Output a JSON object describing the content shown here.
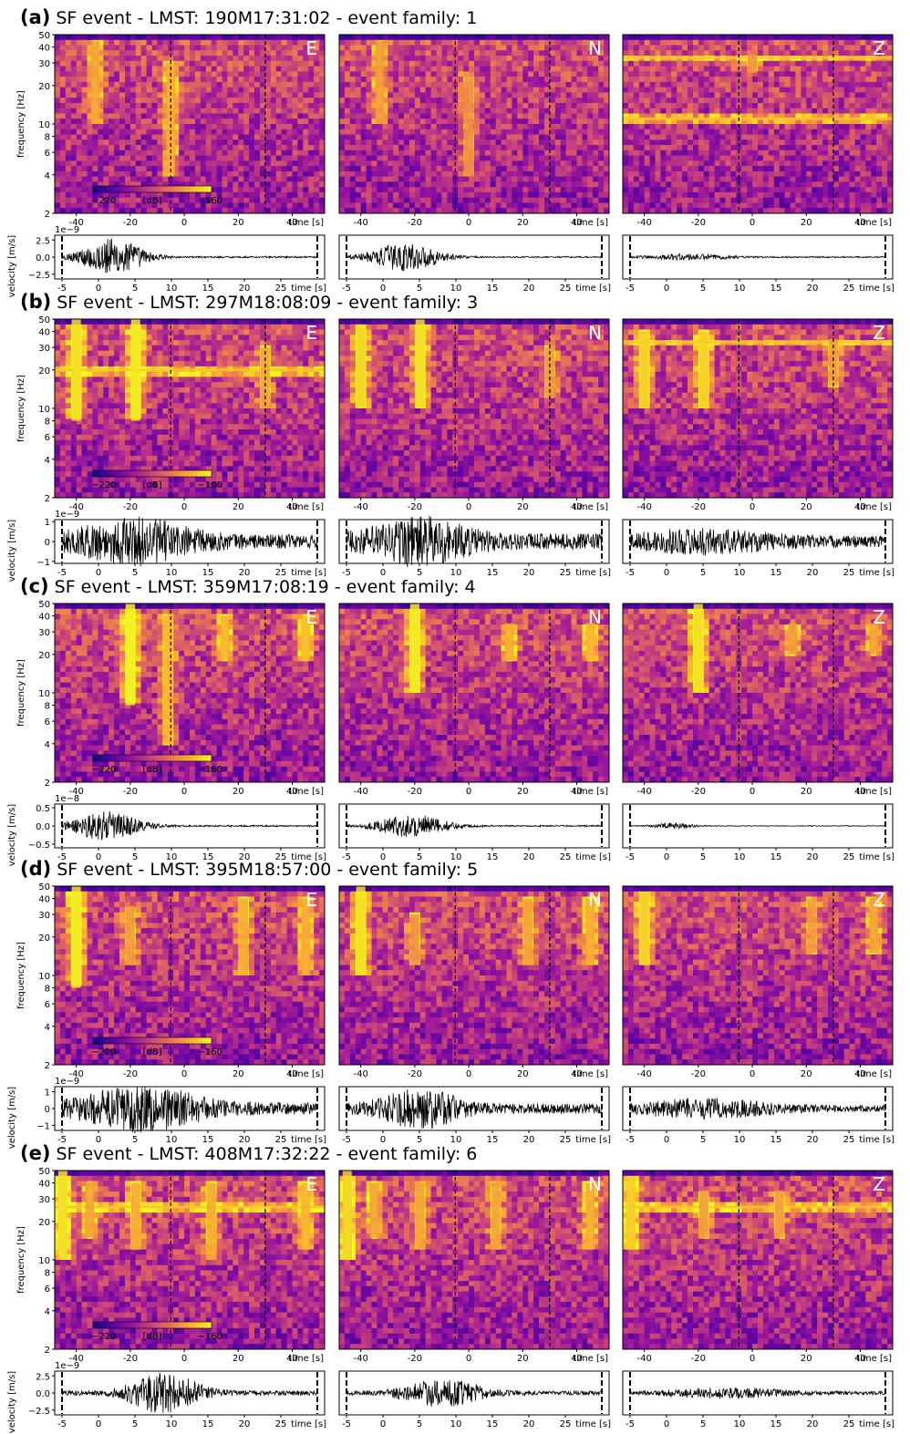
{
  "figure": {
    "components": [
      "E",
      "N",
      "Z"
    ],
    "colorbar": {
      "min_label": "−220",
      "unit_label": "[dB]",
      "max_label": "−160",
      "vmin": -220,
      "vmax": -160,
      "colormap": "plasma",
      "colors": [
        "#0d0887",
        "#5b02a3",
        "#9a179b",
        "#cb4678",
        "#eb7852",
        "#fbb32f",
        "#f0f921"
      ]
    },
    "events": [
      {
        "label": "(a)",
        "title": "SF event - LMST: 190M17:31:02 - event family: 1",
        "velocity_exponent": "1e−9"
      },
      {
        "label": "(b)",
        "title": "SF event - LMST: 297M18:08:09 - event family: 3",
        "velocity_exponent": "1e−9"
      },
      {
        "label": "(c)",
        "title": "SF event - LMST: 359M17:08:19 - event family: 4",
        "velocity_exponent": "1e−8"
      },
      {
        "label": "(d)",
        "title": "SF event - LMST: 395M18:57:00 - event family: 5",
        "velocity_exponent": "1e−9"
      },
      {
        "label": "(e)",
        "title": "SF event - LMST: 408M17:32:22 - event family: 6",
        "velocity_exponent": "1e−9"
      }
    ]
  },
  "chart_data": [
    {
      "type": "heatmap",
      "description_kind": "spectrogram",
      "xlabel": "time [s]",
      "ylabel": "frequency [Hz]",
      "x_ticks": [
        -40,
        -20,
        0,
        20,
        40
      ],
      "y_ticks": [
        2,
        4,
        6,
        8,
        10,
        20,
        30,
        40,
        50
      ],
      "ylim": [
        2,
        50
      ],
      "y_scale": "log",
      "marker_lines_x": [
        -5,
        30
      ],
      "events": [
        {
          "event": "(a)",
          "E": {
            "features": [
              {
                "t": -33,
                "f_low": 10,
                "f_high": 45,
                "strength": 0.5
              },
              {
                "t": -5,
                "f_low": 4,
                "f_high": 30,
                "strength": 0.55
              }
            ]
          },
          "N": {
            "features": [
              {
                "t": -33,
                "f_low": 10,
                "f_high": 45,
                "strength": 0.45
              },
              {
                "t": 0,
                "f_low": 4,
                "f_high": 25,
                "strength": 0.4
              }
            ]
          },
          "Z": {
            "features": [
              {
                "t": 0,
                "f_low": 25,
                "f_high": 35,
                "strength": 0.4
              }
            ],
            "tonal_lines_hz": [
              11,
              33
            ]
          }
        },
        {
          "event": "(b)",
          "E": {
            "features": [
              {
                "t": -40,
                "f_low": 8,
                "f_high": 50,
                "strength": 0.85
              },
              {
                "t": -18,
                "f_low": 8,
                "f_high": 50,
                "strength": 0.9
              },
              {
                "t": 30,
                "f_low": 10,
                "f_high": 30,
                "strength": 0.5
              }
            ],
            "tonal_lines_hz": [
              20
            ]
          },
          "N": {
            "features": [
              {
                "t": -40,
                "f_low": 10,
                "f_high": 45,
                "strength": 0.8
              },
              {
                "t": -18,
                "f_low": 10,
                "f_high": 50,
                "strength": 0.85
              },
              {
                "t": 30,
                "f_low": 12,
                "f_high": 30,
                "strength": 0.45
              }
            ]
          },
          "Z": {
            "features": [
              {
                "t": -40,
                "f_low": 10,
                "f_high": 40,
                "strength": 0.75
              },
              {
                "t": -18,
                "f_low": 10,
                "f_high": 40,
                "strength": 0.75
              },
              {
                "t": 30,
                "f_low": 15,
                "f_high": 35,
                "strength": 0.45
              }
            ],
            "tonal_lines_hz": [
              33
            ]
          }
        },
        {
          "event": "(c)",
          "E": {
            "features": [
              {
                "t": -20,
                "f_low": 8,
                "f_high": 50,
                "strength": 0.95
              },
              {
                "t": -6,
                "f_low": 4,
                "f_high": 40,
                "strength": 0.6
              },
              {
                "t": 15,
                "f_low": 18,
                "f_high": 40,
                "strength": 0.6
              },
              {
                "t": 45,
                "f_low": 18,
                "f_high": 40,
                "strength": 0.65
              }
            ]
          },
          "N": {
            "features": [
              {
                "t": -20,
                "f_low": 10,
                "f_high": 50,
                "strength": 0.9
              },
              {
                "t": 15,
                "f_low": 18,
                "f_high": 35,
                "strength": 0.55
              },
              {
                "t": 45,
                "f_low": 18,
                "f_high": 35,
                "strength": 0.6
              }
            ]
          },
          "Z": {
            "features": [
              {
                "t": -20,
                "f_low": 10,
                "f_high": 50,
                "strength": 0.85
              },
              {
                "t": 15,
                "f_low": 20,
                "f_high": 35,
                "strength": 0.45
              },
              {
                "t": 45,
                "f_low": 20,
                "f_high": 35,
                "strength": 0.5
              }
            ]
          }
        },
        {
          "event": "(d)",
          "E": {
            "features": [
              {
                "t": -40,
                "f_low": 8,
                "f_high": 50,
                "strength": 0.9
              },
              {
                "t": -20,
                "f_low": 12,
                "f_high": 35,
                "strength": 0.45
              },
              {
                "t": 22,
                "f_low": 10,
                "f_high": 40,
                "strength": 0.55
              },
              {
                "t": 45,
                "f_low": 10,
                "f_high": 40,
                "strength": 0.55
              }
            ]
          },
          "N": {
            "features": [
              {
                "t": -40,
                "f_low": 10,
                "f_high": 50,
                "strength": 0.85
              },
              {
                "t": -20,
                "f_low": 12,
                "f_high": 30,
                "strength": 0.4
              },
              {
                "t": 22,
                "f_low": 12,
                "f_high": 40,
                "strength": 0.5
              },
              {
                "t": 45,
                "f_low": 12,
                "f_high": 40,
                "strength": 0.55
              }
            ]
          },
          "Z": {
            "features": [
              {
                "t": -40,
                "f_low": 12,
                "f_high": 45,
                "strength": 0.75
              },
              {
                "t": 22,
                "f_low": 15,
                "f_high": 40,
                "strength": 0.45
              },
              {
                "t": 45,
                "f_low": 15,
                "f_high": 40,
                "strength": 0.5
              }
            ]
          }
        },
        {
          "event": "(e)",
          "E": {
            "features": [
              {
                "t": -45,
                "f_low": 10,
                "f_high": 50,
                "strength": 0.85
              },
              {
                "t": -35,
                "f_low": 15,
                "f_high": 40,
                "strength": 0.5
              },
              {
                "t": -18,
                "f_low": 12,
                "f_high": 40,
                "strength": 0.55
              },
              {
                "t": 10,
                "f_low": 10,
                "f_high": 40,
                "strength": 0.55
              },
              {
                "t": 45,
                "f_low": 12,
                "f_high": 40,
                "strength": 0.6
              }
            ],
            "tonal_lines_hz": [
              26
            ]
          },
          "N": {
            "features": [
              {
                "t": -45,
                "f_low": 10,
                "f_high": 50,
                "strength": 0.8
              },
              {
                "t": -35,
                "f_low": 15,
                "f_high": 40,
                "strength": 0.5
              },
              {
                "t": -18,
                "f_low": 12,
                "f_high": 40,
                "strength": 0.5
              },
              {
                "t": 10,
                "f_low": 12,
                "f_high": 40,
                "strength": 0.5
              },
              {
                "t": 45,
                "f_low": 12,
                "f_high": 40,
                "strength": 0.55
              }
            ]
          },
          "Z": {
            "features": [
              {
                "t": -45,
                "f_low": 12,
                "f_high": 45,
                "strength": 0.75
              },
              {
                "t": -18,
                "f_low": 15,
                "f_high": 35,
                "strength": 0.45
              },
              {
                "t": 10,
                "f_low": 15,
                "f_high": 35,
                "strength": 0.45
              }
            ],
            "tonal_lines_hz": [
              26
            ]
          }
        }
      ]
    },
    {
      "type": "line",
      "description_kind": "velocity seismogram",
      "xlabel": "time [s]",
      "ylabel": "velocity [m/s]",
      "x_ticks": [
        -5,
        0,
        5,
        10,
        15,
        20,
        25
      ],
      "xlim": [
        -6,
        31
      ],
      "marker_lines_x": [
        -5,
        30
      ],
      "events": [
        {
          "event": "(a)",
          "y_ticks": [
            -2.5,
            0.0,
            2.5
          ],
          "y_tick_labels": [
            "−2.5",
            "0.0",
            "2.5"
          ],
          "ylim": [
            -3.2,
            3.2
          ],
          "amplitude_envelope": {
            "E": {
              "peak_t": 2,
              "peak_amp": 2.8,
              "width": 6,
              "floor": 0.12
            },
            "N": {
              "peak_t": 3,
              "peak_amp": 2.0,
              "width": 7,
              "floor": 0.1
            },
            "Z": {
              "peak_t": 3,
              "peak_amp": 0.4,
              "width": 8,
              "floor": 0.1
            }
          }
        },
        {
          "event": "(b)",
          "y_ticks": [
            -1,
            0,
            1
          ],
          "y_tick_labels": [
            "−1",
            "0",
            "1"
          ],
          "ylim": [
            -1.1,
            1.1
          ],
          "amplitude_envelope": {
            "E": {
              "peak_t": 5,
              "peak_amp": 0.9,
              "width": 12,
              "floor": 0.35
            },
            "N": {
              "peak_t": 5,
              "peak_amp": 0.95,
              "width": 10,
              "floor": 0.4
            },
            "Z": {
              "peak_t": 5,
              "peak_amp": 0.4,
              "width": 14,
              "floor": 0.3
            }
          }
        },
        {
          "event": "(c)",
          "y_ticks": [
            -0.5,
            0.0,
            0.5
          ],
          "y_tick_labels": [
            "−0.5",
            "0.0",
            "0.5"
          ],
          "ylim": [
            -0.6,
            0.6
          ],
          "amplitude_envelope": {
            "E": {
              "peak_t": 1,
              "peak_amp": 0.38,
              "width": 7,
              "floor": 0.02
            },
            "N": {
              "peak_t": 4,
              "peak_amp": 0.3,
              "width": 7,
              "floor": 0.02
            },
            "Z": {
              "peak_t": 1,
              "peak_amp": 0.08,
              "width": 4,
              "floor": 0.01
            }
          }
        },
        {
          "event": "(d)",
          "y_ticks": [
            -1,
            0,
            1
          ],
          "y_tick_labels": [
            "−1",
            "0",
            "1"
          ],
          "ylim": [
            -1.3,
            1.3
          ],
          "amplitude_envelope": {
            "E": {
              "peak_t": 6,
              "peak_amp": 1.1,
              "width": 12,
              "floor": 0.35
            },
            "N": {
              "peak_t": 5,
              "peak_amp": 0.95,
              "width": 8,
              "floor": 0.3
            },
            "Z": {
              "peak_t": 5,
              "peak_amp": 0.45,
              "width": 14,
              "floor": 0.2
            }
          }
        },
        {
          "event": "(e)",
          "y_ticks": [
            -2.5,
            0.0,
            2.5
          ],
          "y_tick_labels": [
            "−2.5",
            "0.0",
            "2.5"
          ],
          "ylim": [
            -3.2,
            3.2
          ],
          "amplitude_envelope": {
            "E": {
              "peak_t": 9,
              "peak_amp": 2.8,
              "width": 7,
              "floor": 0.35
            },
            "N": {
              "peak_t": 8,
              "peak_amp": 1.8,
              "width": 8,
              "floor": 0.3
            },
            "Z": {
              "peak_t": 8,
              "peak_amp": 0.6,
              "width": 12,
              "floor": 0.25
            }
          }
        }
      ]
    }
  ]
}
